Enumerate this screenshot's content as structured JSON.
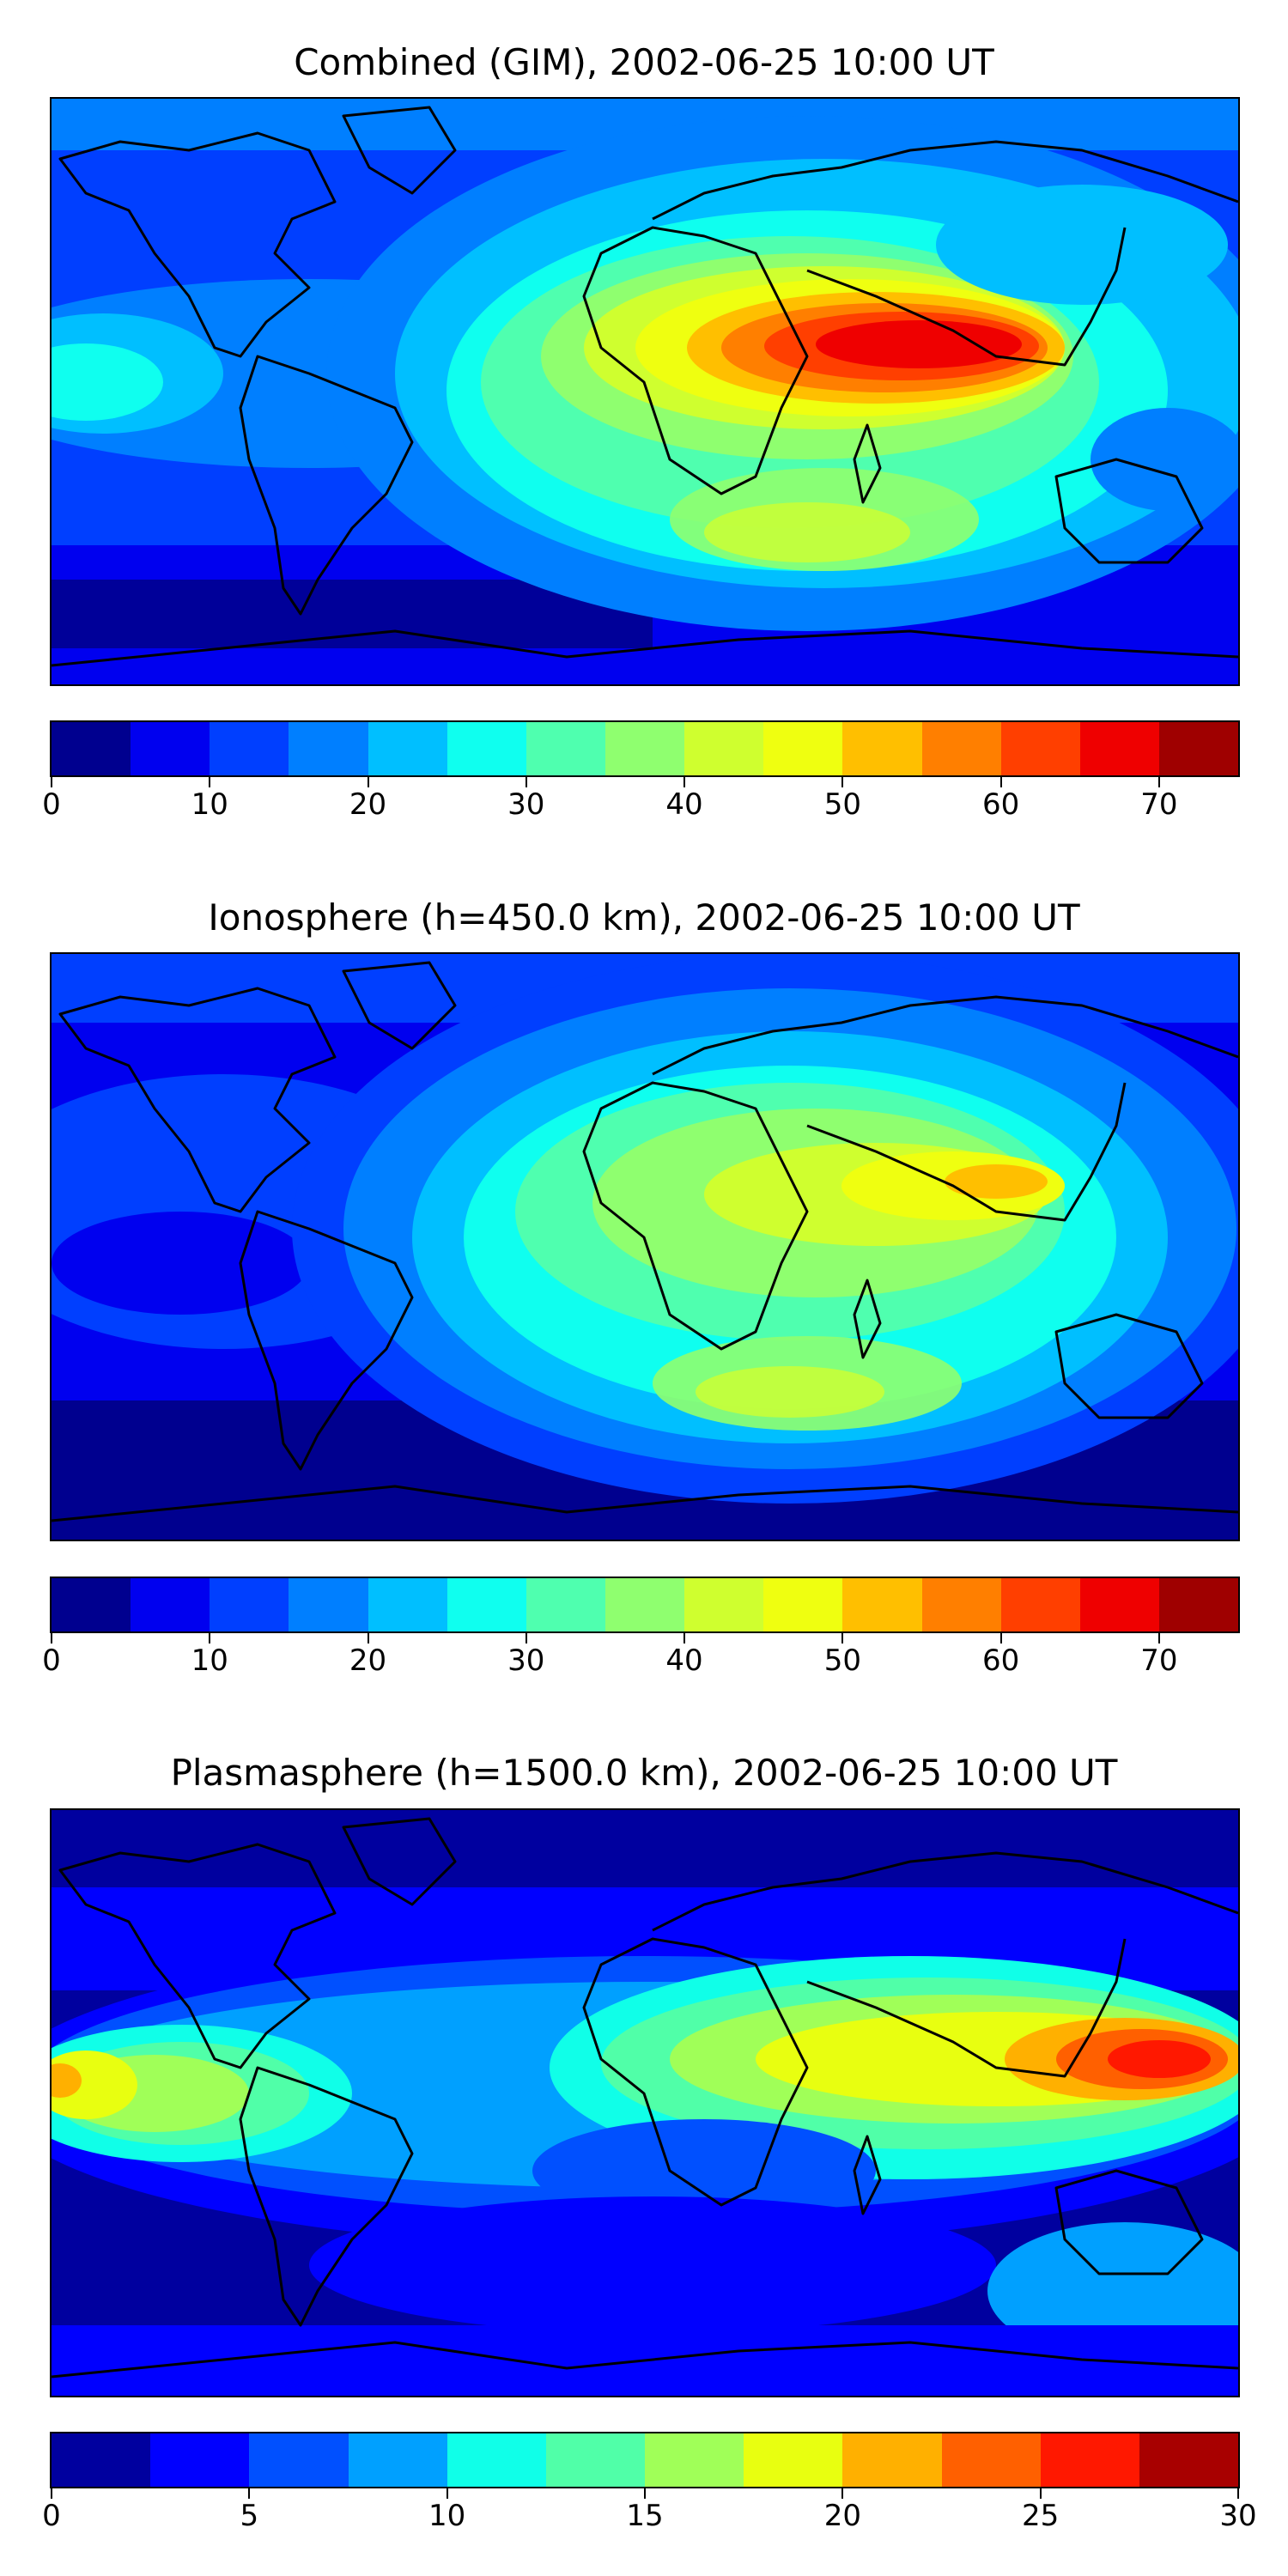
{
  "panels": [
    {
      "title": "Combined (GIM), 2002-06-25 10:00 UT",
      "colorbar": {
        "min": 0,
        "max": 75,
        "ticks": [
          "0",
          "10",
          "20",
          "30",
          "40",
          "50",
          "60",
          "70"
        ],
        "tick_values": [
          0,
          10,
          20,
          30,
          40,
          50,
          60,
          70
        ],
        "colors": [
          "#00008f",
          "#0000ef",
          "#003fff",
          "#007fff",
          "#00bfff",
          "#0fffef",
          "#4fffaf",
          "#8fff6f",
          "#cfff2f",
          "#efff10",
          "#ffbf00",
          "#ff7f00",
          "#ff3f00",
          "#ef0000",
          "#9f0000"
        ]
      }
    },
    {
      "title": "Ionosphere  (h=450.0 km), 2002-06-25 10:00 UT",
      "colorbar": {
        "min": 0,
        "max": 75,
        "ticks": [
          "0",
          "10",
          "20",
          "30",
          "40",
          "50",
          "60",
          "70"
        ],
        "tick_values": [
          0,
          10,
          20,
          30,
          40,
          50,
          60,
          70
        ],
        "colors": [
          "#00008f",
          "#0000ef",
          "#003fff",
          "#007fff",
          "#00bfff",
          "#0fffef",
          "#4fffaf",
          "#8fff6f",
          "#cfff2f",
          "#efff10",
          "#ffbf00",
          "#ff7f00",
          "#ff3f00",
          "#ef0000",
          "#9f0000"
        ]
      }
    },
    {
      "title": "Plasmasphere (h=1500.0 km), 2002-06-25 10:00 UT",
      "colorbar": {
        "min": 0,
        "max": 30,
        "ticks": [
          "0",
          "5",
          "10",
          "15",
          "20",
          "25",
          "30"
        ],
        "tick_values": [
          0,
          5,
          10,
          15,
          20,
          25,
          30
        ],
        "colors": [
          "#00009f",
          "#0000ff",
          "#0050ff",
          "#00a0ff",
          "#10ffe8",
          "#50ffa8",
          "#a0ff58",
          "#e8ff10",
          "#ffb000",
          "#ff6000",
          "#ff1800",
          "#a80000"
        ]
      }
    }
  ]
}
